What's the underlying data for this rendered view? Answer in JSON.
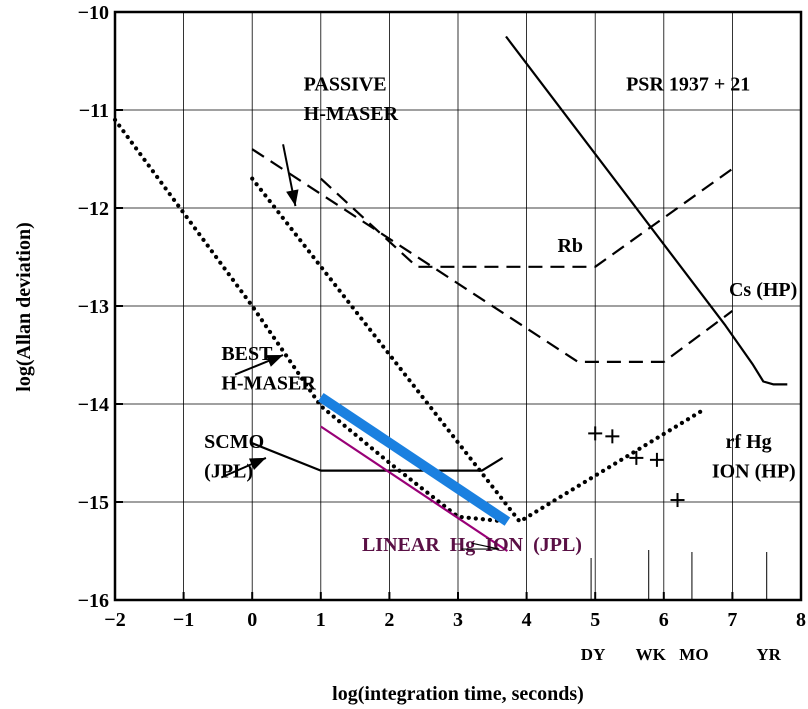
{
  "chart_data": {
    "type": "line",
    "xlabel": "log(integration time, seconds)",
    "ylabel": "log(Allan deviation)",
    "xlim": [
      -2,
      8
    ],
    "ylim": [
      -16,
      -10
    ],
    "grid": true,
    "x_ticks": [
      "−2",
      "−1",
      "0",
      "1",
      "2",
      "3",
      "4",
      "5",
      "6",
      "7",
      "8"
    ],
    "y_ticks": [
      "−10",
      "−11",
      "−12",
      "−13",
      "−14",
      "−15",
      "−16"
    ],
    "time_markers": [
      {
        "label": "DY",
        "x": 4.94
      },
      {
        "label": "WK",
        "x": 5.78
      },
      {
        "label": "MO",
        "x": 6.41
      },
      {
        "label": "YR",
        "x": 7.5
      }
    ],
    "series": [
      {
        "name": "PSR 1937 + 21",
        "style": "solid",
        "color": "#000000",
        "points": [
          [
            3.7,
            -10.25
          ],
          [
            6.9,
            -13.2
          ],
          [
            7.3,
            -13.6
          ],
          [
            7.45,
            -13.77
          ],
          [
            7.6,
            -13.8
          ],
          [
            7.8,
            -13.8
          ]
        ]
      },
      {
        "name": "Rb",
        "style": "dashed",
        "color": "#000000",
        "points": [
          [
            1,
            -11.7
          ],
          [
            2.4,
            -12.6
          ],
          [
            5,
            -12.6
          ],
          [
            7,
            -11.6
          ]
        ]
      },
      {
        "name": "Cs (HP)",
        "style": "dashed",
        "color": "#000000",
        "points": [
          [
            0,
            -11.4
          ],
          [
            4.75,
            -13.57
          ],
          [
            6,
            -13.57
          ],
          [
            7,
            -13.05
          ]
        ]
      },
      {
        "name": "PASSIVE H-MASER",
        "style": "dotted",
        "color": "#000000",
        "points": [
          [
            0,
            -11.7
          ],
          [
            3.9,
            -15.2
          ],
          [
            6.6,
            -14.05
          ]
        ]
      },
      {
        "name": "BEST H-MASER",
        "style": "dotted",
        "color": "#000000",
        "points": [
          [
            -2,
            -11.1
          ],
          [
            0,
            -13
          ],
          [
            1,
            -14.02
          ],
          [
            2,
            -14.6
          ],
          [
            3,
            -15.15
          ],
          [
            3.7,
            -15.2
          ]
        ]
      },
      {
        "name": "SCMO (JPL)",
        "style": "solid",
        "color": "#000000",
        "points": [
          [
            0,
            -14.4
          ],
          [
            1,
            -14.68
          ],
          [
            3.35,
            -14.68
          ],
          [
            3.65,
            -14.55
          ]
        ]
      },
      {
        "name": "LINEAR Hg ION (JPL)",
        "style": "solid",
        "color": "#990077",
        "points": [
          [
            1,
            -14.23
          ],
          [
            3.72,
            -15.5
          ]
        ]
      },
      {
        "name": "",
        "style": "thick",
        "color": "#1a80e0",
        "points": [
          [
            1,
            -13.93
          ],
          [
            3.72,
            -15.2
          ]
        ]
      }
    ],
    "scatter": {
      "name": "rf Hg ION (HP)",
      "points": [
        [
          5,
          -14.3
        ],
        [
          5.25,
          -14.33
        ],
        [
          5.6,
          -14.55
        ],
        [
          5.9,
          -14.57
        ],
        [
          6.2,
          -14.98
        ]
      ]
    },
    "annotations": [
      {
        "text": "PASSIVE",
        "x": 0.75,
        "y": -10.8
      },
      {
        "text": "H-MASER",
        "x": 0.75,
        "y": -11.1
      },
      {
        "text": "BEST",
        "x": -0.45,
        "y": -13.55
      },
      {
        "text": "H-MASER",
        "x": -0.45,
        "y": -13.85
      },
      {
        "text": "SCMO",
        "x": -0.7,
        "y": -14.45
      },
      {
        "text": "(JPL)",
        "x": -0.7,
        "y": -14.75
      },
      {
        "text": "Rb",
        "x": 4.45,
        "y": -12.45
      },
      {
        "text": "PSR 1937 + 21",
        "x": 5.45,
        "y": -10.8
      },
      {
        "text": "Cs (HP)",
        "x": 6.95,
        "y": -12.9
      },
      {
        "text": "rf Hg",
        "x": 6.9,
        "y": -14.45
      },
      {
        "text": "ION (HP)",
        "x": 6.7,
        "y": -14.75
      },
      {
        "text": "LINEAR  Hg  ION  (JPL)",
        "x": 1.6,
        "y": -15.5
      }
    ]
  }
}
